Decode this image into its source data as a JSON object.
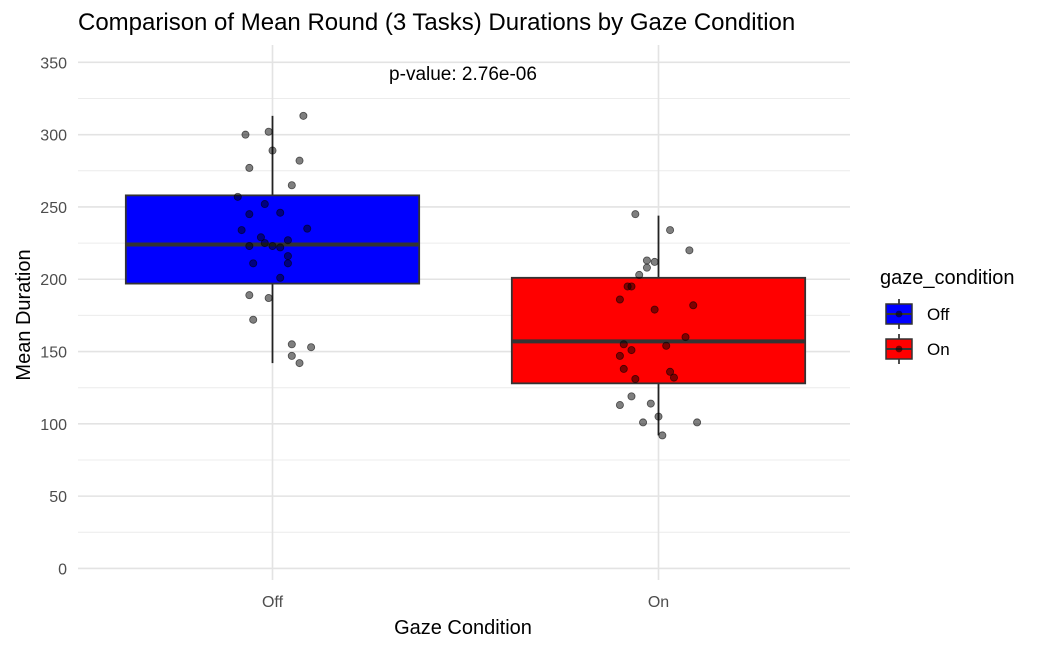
{
  "chart_data": {
    "type": "box",
    "title": "Comparison of Mean Round (3 Tasks) Durations by Gaze Condition",
    "xlabel": "Gaze Condition",
    "ylabel": "Mean Duration",
    "ylim": [
      -8,
      362
    ],
    "y_ticks": [
      0,
      50,
      100,
      150,
      200,
      250,
      300,
      350
    ],
    "grid": true,
    "annotation": "p-value: 2.76e-06",
    "categories": [
      "Off",
      "On"
    ],
    "legend": {
      "title": "gaze_condition",
      "placement": "right",
      "entries": [
        "Off",
        "On"
      ]
    },
    "series": [
      {
        "category": "Off",
        "color": "#0000ff",
        "box": {
          "lower_whisker": 142,
          "q1": 197,
          "median": 224,
          "q3": 258,
          "upper_whisker": 313
        },
        "points": [
          [
            0.08,
            313
          ],
          [
            -0.01,
            302
          ],
          [
            -0.07,
            300
          ],
          [
            0.0,
            289
          ],
          [
            0.07,
            282
          ],
          [
            -0.06,
            277
          ],
          [
            0.05,
            265
          ],
          [
            -0.09,
            257
          ],
          [
            -0.02,
            252
          ],
          [
            0.02,
            246
          ],
          [
            -0.06,
            245
          ],
          [
            -0.08,
            234
          ],
          [
            0.09,
            235
          ],
          [
            -0.03,
            229
          ],
          [
            0.04,
            227
          ],
          [
            -0.02,
            225
          ],
          [
            0.0,
            223
          ],
          [
            -0.06,
            223
          ],
          [
            0.02,
            222
          ],
          [
            0.04,
            216
          ],
          [
            -0.05,
            211
          ],
          [
            0.04,
            211
          ],
          [
            0.02,
            201
          ],
          [
            -0.06,
            189
          ],
          [
            -0.01,
            187
          ],
          [
            -0.05,
            172
          ],
          [
            0.05,
            155
          ],
          [
            0.1,
            153
          ],
          [
            0.05,
            147
          ],
          [
            0.07,
            142
          ]
        ]
      },
      {
        "category": "On",
        "color": "#ff0000",
        "box": {
          "lower_whisker": 92,
          "q1": 128,
          "median": 157,
          "q3": 201,
          "upper_whisker": 244
        },
        "points": [
          [
            -0.06,
            245
          ],
          [
            0.03,
            234
          ],
          [
            0.08,
            220
          ],
          [
            -0.03,
            213
          ],
          [
            -0.01,
            212
          ],
          [
            -0.03,
            208
          ],
          [
            -0.05,
            203
          ],
          [
            -0.07,
            195
          ],
          [
            -0.08,
            195
          ],
          [
            -0.1,
            186
          ],
          [
            0.09,
            182
          ],
          [
            -0.01,
            179
          ],
          [
            0.07,
            160
          ],
          [
            0.02,
            154
          ],
          [
            -0.09,
            155
          ],
          [
            -0.07,
            151
          ],
          [
            -0.1,
            147
          ],
          [
            -0.09,
            138
          ],
          [
            0.03,
            136
          ],
          [
            0.04,
            132
          ],
          [
            -0.06,
            131
          ],
          [
            -0.07,
            119
          ],
          [
            -0.02,
            114
          ],
          [
            -0.1,
            113
          ],
          [
            0.0,
            105
          ],
          [
            -0.04,
            101
          ],
          [
            0.1,
            101
          ],
          [
            0.01,
            92
          ]
        ]
      }
    ]
  }
}
